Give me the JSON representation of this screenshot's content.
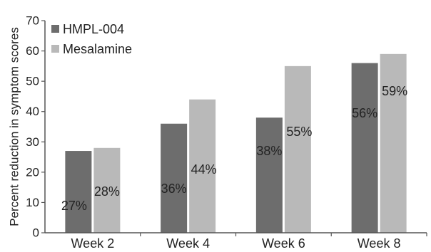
{
  "chart_data": {
    "type": "bar",
    "title": "",
    "xlabel": "",
    "ylabel": "Percent reduction in symptom scores",
    "ylim": [
      0,
      70
    ],
    "yticks": [
      0,
      10,
      20,
      30,
      40,
      50,
      60,
      70
    ],
    "categories": [
      "Week 2",
      "Week 4",
      "Week 6",
      "Week 8"
    ],
    "series": [
      {
        "name": "HMPL-004",
        "values": [
          27,
          36,
          38,
          56
        ],
        "labels": [
          "27%",
          "36%",
          "38%",
          "56%"
        ],
        "color": "#6d6d6d"
      },
      {
        "name": "Mesalamine",
        "values": [
          28,
          44,
          55,
          59
        ],
        "labels": [
          "28%",
          "44%",
          "55%",
          "59%"
        ],
        "color": "#b9b9b9"
      }
    ],
    "legend_position": "top-left",
    "grid": false
  }
}
